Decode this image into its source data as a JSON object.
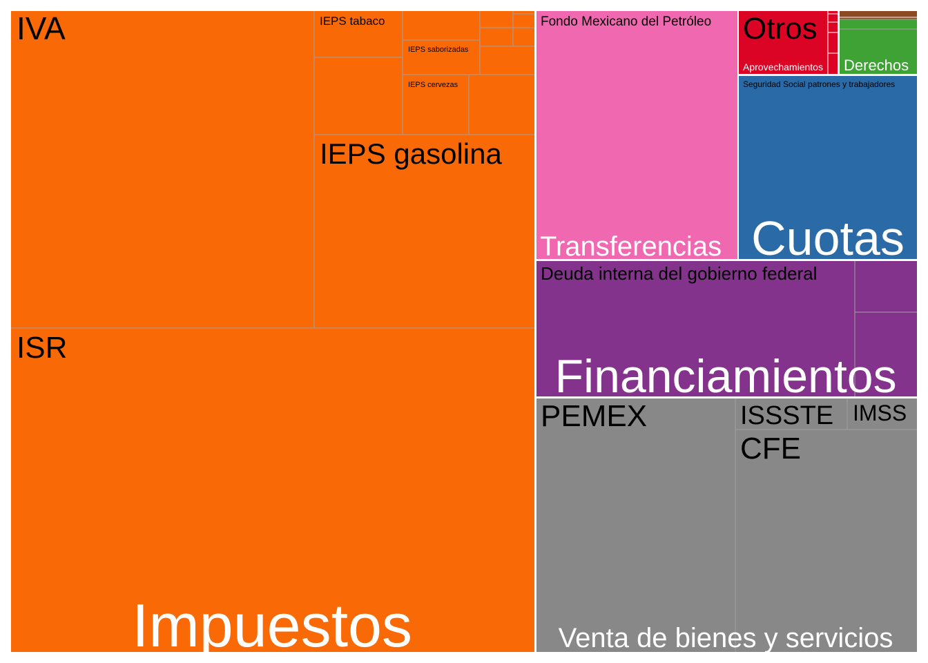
{
  "chart_data": {
    "type": "treemap",
    "title": "",
    "colors": {
      "Impuestos": "#f96a06",
      "Transferencias": "#f068b0",
      "Otros": "#dc0424",
      "Derechos": "#3ea234",
      "Productos": "#8b4a24",
      "Cuotas": "#2a6aa6",
      "Financiamientos": "#84338c",
      "Venta de bienes y servicios": "#888888",
      "border": "#ffffff",
      "inner_border": "#a0a0a0",
      "label_dark": "#000000",
      "label_light": "#ffffff"
    },
    "groups": [
      {
        "name": "Impuestos",
        "label": "Impuestos",
        "children": [
          {
            "name": "IVA",
            "label": "IVA"
          },
          {
            "name": "ISR",
            "label": "ISR"
          },
          {
            "name": "IEPS gasolina",
            "label": "IEPS gasolina"
          },
          {
            "name": "IEPS tabaco",
            "label": "IEPS tabaco"
          },
          {
            "name": "IEPS saborizadas",
            "label": "IEPS saborizadas"
          },
          {
            "name": "IEPS cervezas",
            "label": "IEPS cervezas"
          }
        ]
      },
      {
        "name": "Transferencias",
        "label": "Transferencias",
        "children": [
          {
            "name": "Fondo Mexicano del Petróleo",
            "label": "Fondo Mexicano del Petróleo"
          }
        ]
      },
      {
        "name": "Otros",
        "label": "Otros",
        "children": [
          {
            "name": "Aprovechamientos",
            "label": "Aprovechamientos"
          }
        ]
      },
      {
        "name": "Derechos",
        "label": "Derechos",
        "children": []
      },
      {
        "name": "Cuotas",
        "label": "Cuotas",
        "children": [
          {
            "name": "Seguridad Social patrones y trabajadores",
            "label": "Seguridad Social patrones y trabajadores"
          }
        ]
      },
      {
        "name": "Financiamientos",
        "label": "Financiamientos",
        "children": [
          {
            "name": "Deuda interna del gobierno federal",
            "label": "Deuda interna del gobierno federal"
          }
        ]
      },
      {
        "name": "Venta de bienes y servicios",
        "label": "Venta de bienes y servicios",
        "children": [
          {
            "name": "PEMEX",
            "label": "PEMEX"
          },
          {
            "name": "CFE",
            "label": "CFE"
          },
          {
            "name": "ISSSTE",
            "label": "ISSSTE"
          },
          {
            "name": "IMSS",
            "label": "IMSS"
          }
        ]
      }
    ]
  }
}
